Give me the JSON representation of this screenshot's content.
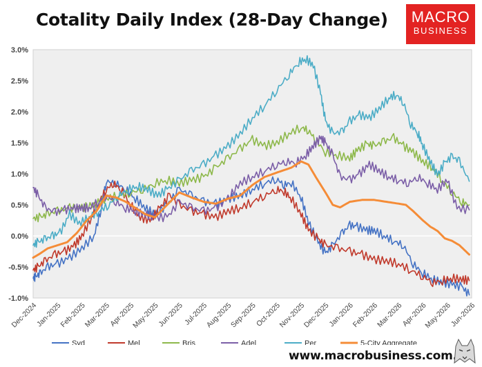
{
  "header": {
    "title": "Cotality Daily Index (28-Day Change)"
  },
  "logo": {
    "line1": "MACRO",
    "line2": "BUSINESS",
    "color": "#e32322"
  },
  "footer": {
    "website": "www.macrobusiness.com.au"
  },
  "chart_data": {
    "type": "line",
    "title": "Cotality Daily Index (28-Day Change)",
    "xlabel": "",
    "ylabel": "",
    "ylim": [
      -0.01,
      0.03
    ],
    "y_format": "percent_1dp",
    "y_ticks": [
      -0.01,
      -0.005,
      0,
      0.005,
      0.01,
      0.015,
      0.02,
      0.025,
      0.03
    ],
    "x_range": [
      0,
      18
    ],
    "x_tick_labels": [
      "Dec-2024",
      "Jan-2025",
      "Feb-2025",
      "Mar-2025",
      "Apr-2025",
      "May-2025",
      "Jun-2025",
      "Jul-2025",
      "Aug-2025",
      "Sep-2025",
      "Oct-2025",
      "Nov-2025",
      "Dec-2025",
      "Jan-2026",
      "Feb-2026",
      "Mar-2026",
      "Apr-2026",
      "May-2026",
      "Jun-2026"
    ],
    "grid": "zero-line only",
    "background": "#efefef",
    "legend_position": "bottom",
    "series": [
      {
        "name": "Syd",
        "color": "#4472c4",
        "width": 1.6,
        "x": [
          0,
          0.1,
          0.3,
          0.6,
          1.0,
          1.5,
          2.0,
          2.5,
          2.8,
          3.0,
          3.4,
          3.8,
          4.2,
          4.6,
          5.0,
          5.5,
          6.0,
          6.5,
          7.0,
          7.5,
          8.0,
          8.5,
          9.0,
          9.5,
          10.0,
          10.3,
          10.6,
          11.0,
          11.3,
          11.7,
          12.0,
          12.3,
          12.7,
          13.0,
          13.3,
          13.7,
          14.0,
          14.4,
          14.8,
          15.2,
          15.6,
          16.0,
          16.4,
          16.8,
          17.2,
          17.6,
          17.9
        ],
        "y": [
          -0.0068,
          -0.0066,
          -0.006,
          -0.005,
          -0.0045,
          -0.0035,
          -0.002,
          0.0,
          0.0045,
          0.0088,
          0.0085,
          0.0075,
          0.006,
          0.0045,
          0.0035,
          0.005,
          0.0075,
          0.0065,
          0.0055,
          0.0052,
          0.006,
          0.0065,
          0.0075,
          0.0085,
          0.0092,
          0.0082,
          0.0086,
          0.0062,
          0.0022,
          -0.001,
          -0.0028,
          -0.0015,
          0.0005,
          0.0017,
          0.0015,
          0.0009,
          0.0009,
          0.0,
          -0.0008,
          -0.0015,
          -0.0045,
          -0.006,
          -0.007,
          -0.0075,
          -0.0078,
          -0.0082,
          -0.0095
        ]
      },
      {
        "name": "Mel",
        "color": "#c0392b",
        "width": 1.6,
        "x": [
          0,
          0.2,
          0.5,
          0.9,
          1.3,
          1.7,
          2.0,
          2.4,
          2.7,
          3.0,
          3.3,
          3.6,
          4.0,
          4.4,
          4.8,
          5.2,
          5.6,
          6.0,
          6.5,
          7.0,
          7.5,
          8.0,
          8.5,
          9.0,
          9.5,
          10.0,
          10.3,
          10.6,
          11.0,
          11.3,
          11.7,
          12.0,
          12.5,
          13.0,
          13.5,
          14.0,
          14.5,
          15.0,
          15.5,
          16.0,
          16.4,
          16.8,
          17.2,
          17.6,
          17.9
        ],
        "y": [
          -0.0055,
          -0.005,
          -0.004,
          -0.003,
          -0.0025,
          -0.0015,
          0.0,
          0.003,
          0.0055,
          0.0075,
          0.0085,
          0.0075,
          0.005,
          0.003,
          0.0025,
          0.0045,
          0.0065,
          0.005,
          0.004,
          0.0035,
          0.003,
          0.004,
          0.0045,
          0.0055,
          0.0065,
          0.0075,
          0.0072,
          0.006,
          0.0035,
          0.001,
          -0.0005,
          -0.0015,
          -0.002,
          -0.0025,
          -0.003,
          -0.0038,
          -0.004,
          -0.0045,
          -0.0055,
          -0.0065,
          -0.0075,
          -0.0072,
          -0.0068,
          -0.007,
          -0.0072
        ]
      },
      {
        "name": "Bris",
        "color": "#8db84a",
        "width": 1.6,
        "x": [
          0,
          0.3,
          0.6,
          1.0,
          1.5,
          2.0,
          2.5,
          3.0,
          3.5,
          4.0,
          4.5,
          5.0,
          5.5,
          6.0,
          6.5,
          7.0,
          7.5,
          8.0,
          8.5,
          9.0,
          9.5,
          10.0,
          10.5,
          11.0,
          11.3,
          11.6,
          12.0,
          12.5,
          13.0,
          13.3,
          13.7,
          14.0,
          14.4,
          14.8,
          15.2,
          15.6,
          16.0,
          16.4,
          16.8,
          17.2,
          17.6,
          17.9
        ],
        "y": [
          0.0028,
          0.003,
          0.0035,
          0.004,
          0.0045,
          0.0045,
          0.005,
          0.006,
          0.0065,
          0.007,
          0.0075,
          0.0085,
          0.009,
          0.0085,
          0.009,
          0.0095,
          0.011,
          0.0125,
          0.014,
          0.0155,
          0.0145,
          0.015,
          0.0165,
          0.0175,
          0.017,
          0.0155,
          0.0135,
          0.013,
          0.0125,
          0.0138,
          0.0148,
          0.0145,
          0.0152,
          0.0158,
          0.0145,
          0.0135,
          0.012,
          0.011,
          0.009,
          0.007,
          0.0055,
          0.005
        ]
      },
      {
        "name": "Adel",
        "color": "#7b5ea7",
        "width": 1.6,
        "x": [
          0,
          0.2,
          0.5,
          0.9,
          1.3,
          1.7,
          2.0,
          2.3,
          2.7,
          3.0,
          3.4,
          3.8,
          4.2,
          4.6,
          5.0,
          5.5,
          6.0,
          6.5,
          7.0,
          7.5,
          8.0,
          8.5,
          9.0,
          9.5,
          10.0,
          10.4,
          10.8,
          11.2,
          11.5,
          11.8,
          12.0,
          12.3,
          12.6,
          13.0,
          13.4,
          13.8,
          14.2,
          14.6,
          15.0,
          15.4,
          15.8,
          16.2,
          16.6,
          17.0,
          17.4,
          17.9
        ],
        "y": [
          0.0078,
          0.0065,
          0.0045,
          0.0038,
          0.0042,
          0.0044,
          0.0045,
          0.0045,
          0.0055,
          0.0065,
          0.0055,
          0.0045,
          0.004,
          0.0035,
          0.003,
          0.003,
          0.0055,
          0.0045,
          0.004,
          0.0045,
          0.006,
          0.0085,
          0.0095,
          0.0105,
          0.0115,
          0.012,
          0.0118,
          0.013,
          0.0145,
          0.0158,
          0.015,
          0.013,
          0.0095,
          0.009,
          0.01,
          0.0115,
          0.0105,
          0.0095,
          0.009,
          0.0085,
          0.0095,
          0.0085,
          0.0075,
          0.009,
          0.0045,
          0.0042
        ]
      },
      {
        "name": "Per",
        "color": "#4bacc6",
        "width": 1.6,
        "x": [
          0,
          0.2,
          0.5,
          0.8,
          1.1,
          1.5,
          1.9,
          2.3,
          2.7,
          3.1,
          3.5,
          3.9,
          4.3,
          4.7,
          5.1,
          5.5,
          6.0,
          6.5,
          7.0,
          7.5,
          8.0,
          8.5,
          9.0,
          9.5,
          10.0,
          10.5,
          10.9,
          11.2,
          11.5,
          11.8,
          12.0,
          12.3,
          12.7,
          13.0,
          13.4,
          13.8,
          14.2,
          14.6,
          14.9,
          15.2,
          15.5,
          15.8,
          16.0,
          16.3,
          16.6,
          16.9,
          17.2,
          17.5,
          17.9
        ],
        "y": [
          -0.0015,
          -0.001,
          -0.0005,
          0.0,
          0.0005,
          0.0035,
          0.002,
          0.003,
          0.004,
          0.005,
          0.0065,
          0.0075,
          0.008,
          0.0075,
          0.0065,
          0.0075,
          0.009,
          0.0105,
          0.0115,
          0.013,
          0.0145,
          0.0165,
          0.019,
          0.021,
          0.0235,
          0.026,
          0.028,
          0.0285,
          0.0275,
          0.023,
          0.0185,
          0.0165,
          0.0168,
          0.0185,
          0.0195,
          0.019,
          0.0205,
          0.0222,
          0.0228,
          0.0215,
          0.018,
          0.0165,
          0.0145,
          0.012,
          0.0098,
          0.0118,
          0.0128,
          0.012,
          0.0088
        ]
      },
      {
        "name": "5-City Aggregate",
        "color": "#f58c37",
        "width": 3,
        "x": [
          0,
          0.3,
          0.6,
          1.0,
          1.4,
          1.8,
          2.2,
          2.6,
          3.0,
          3.4,
          3.8,
          4.2,
          4.6,
          5.0,
          5.5,
          6.0,
          6.5,
          7.0,
          7.5,
          8.0,
          8.5,
          9.0,
          9.5,
          10.0,
          10.3,
          10.6,
          11.0,
          11.3,
          11.6,
          12.0,
          12.3,
          12.6,
          13.0,
          13.5,
          14.0,
          14.5,
          15.0,
          15.3,
          15.6,
          16.0,
          16.3,
          16.6,
          16.9,
          17.2,
          17.5,
          17.9
        ],
        "y": [
          -0.0035,
          -0.0028,
          -0.002,
          -0.0015,
          -0.001,
          0.0005,
          0.0025,
          0.004,
          0.0065,
          0.0062,
          0.0055,
          0.0045,
          0.0035,
          0.003,
          0.005,
          0.007,
          0.0062,
          0.0055,
          0.0052,
          0.006,
          0.0065,
          0.0082,
          0.0095,
          0.0102,
          0.0106,
          0.011,
          0.012,
          0.0115,
          0.0095,
          0.007,
          0.005,
          0.0046,
          0.0055,
          0.0058,
          0.0058,
          0.0055,
          0.0052,
          0.005,
          0.004,
          0.0025,
          0.0015,
          0.0008,
          -0.0004,
          -0.0008,
          -0.0015,
          -0.003
        ]
      }
    ]
  }
}
